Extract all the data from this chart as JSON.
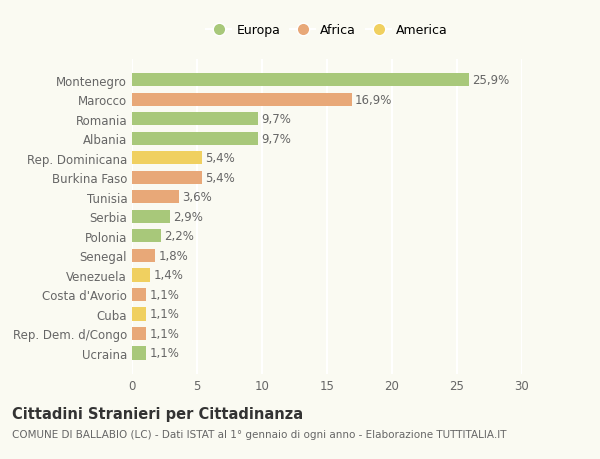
{
  "categories": [
    "Montenegro",
    "Marocco",
    "Romania",
    "Albania",
    "Rep. Dominicana",
    "Burkina Faso",
    "Tunisia",
    "Serbia",
    "Polonia",
    "Senegal",
    "Venezuela",
    "Costa d'Avorio",
    "Cuba",
    "Rep. Dem. d/Congo",
    "Ucraina"
  ],
  "values": [
    25.9,
    16.9,
    9.7,
    9.7,
    5.4,
    5.4,
    3.6,
    2.9,
    2.2,
    1.8,
    1.4,
    1.1,
    1.1,
    1.1,
    1.1
  ],
  "labels": [
    "25,9%",
    "16,9%",
    "9,7%",
    "9,7%",
    "5,4%",
    "5,4%",
    "3,6%",
    "2,9%",
    "2,2%",
    "1,8%",
    "1,4%",
    "1,1%",
    "1,1%",
    "1,1%",
    "1,1%"
  ],
  "continent": [
    "Europa",
    "Africa",
    "Europa",
    "Europa",
    "America",
    "Africa",
    "Africa",
    "Europa",
    "Europa",
    "Africa",
    "America",
    "Africa",
    "America",
    "Africa",
    "Europa"
  ],
  "colors": {
    "Europa": "#a8c87a",
    "Africa": "#e8a878",
    "America": "#f0d060"
  },
  "legend_order": [
    "Europa",
    "Africa",
    "America"
  ],
  "title": "Cittadini Stranieri per Cittadinanza",
  "subtitle": "COMUNE DI BALLABIO (LC) - Dati ISTAT al 1° gennaio di ogni anno - Elaborazione TUTTITALIA.IT",
  "xlim": [
    0,
    30
  ],
  "xticks": [
    0,
    5,
    10,
    15,
    20,
    25,
    30
  ],
  "background_color": "#fafaf2",
  "grid_color": "#ffffff",
  "bar_height": 0.68,
  "label_fontsize": 8.5,
  "tick_fontsize": 8.5,
  "title_fontsize": 10.5,
  "subtitle_fontsize": 7.5,
  "legend_fontsize": 9
}
